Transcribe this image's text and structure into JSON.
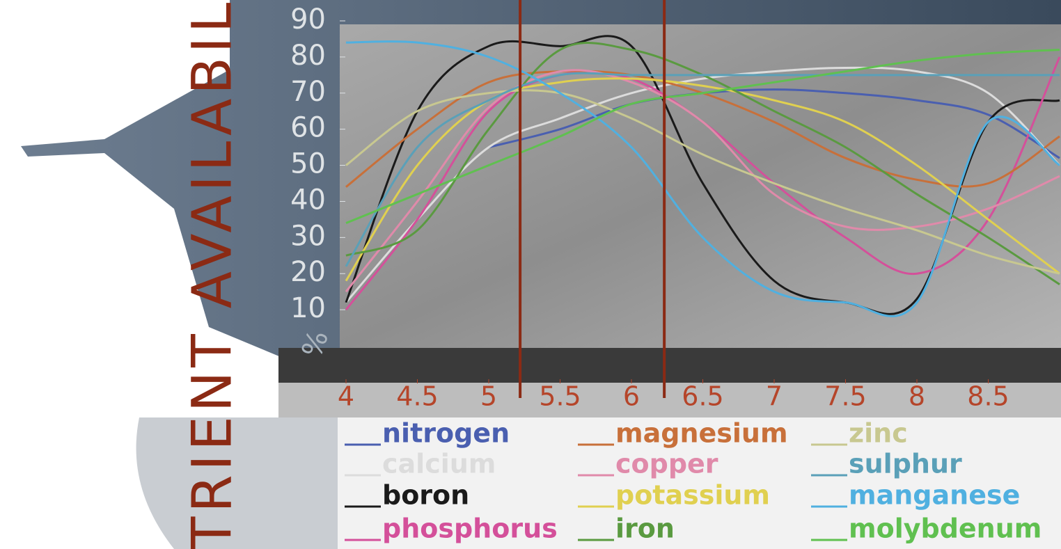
{
  "chart_data": {
    "type": "line",
    "axis_title": "TRIENT AVAILABIL",
    "y_unit": "%",
    "x": [
      4,
      4.5,
      5,
      5.5,
      6,
      6.5,
      7,
      7.5,
      8,
      8.5,
      9
    ],
    "xlim": [
      4,
      9
    ],
    "xticks": [
      4,
      4.5,
      5,
      5.5,
      6,
      6.5,
      7,
      7.5,
      8,
      8.5
    ],
    "ylim": [
      0,
      90
    ],
    "yticks": [
      10,
      20,
      30,
      40,
      50,
      60,
      70,
      80,
      90
    ],
    "vlines": [
      5.22,
      6.23
    ],
    "vline_color": "#8b2a14",
    "series": [
      {
        "name": "nitrogen",
        "color": "#4a5fb0",
        "values": [
          null,
          null,
          55,
          60,
          67,
          70,
          71,
          70,
          68,
          64,
          52
        ]
      },
      {
        "name": "calcium",
        "color": "#dcdcdc",
        "values": [
          12,
          35,
          55,
          63,
          70,
          74,
          76,
          77,
          76,
          70,
          50
        ]
      },
      {
        "name": "boron",
        "color": "#1a1a1a",
        "values": [
          12,
          65,
          83,
          83,
          83,
          45,
          18,
          12,
          13,
          62,
          68
        ]
      },
      {
        "name": "phosphorus",
        "color": "#d4509a",
        "values": [
          10,
          35,
          65,
          75,
          74,
          62,
          45,
          30,
          20,
          35,
          80
        ]
      },
      {
        "name": "magnesium",
        "color": "#c8703a",
        "values": [
          44,
          60,
          73,
          76,
          75,
          70,
          62,
          52,
          46,
          45,
          58
        ]
      },
      {
        "name": "copper",
        "color": "#e08aaa",
        "values": [
          15,
          40,
          66,
          76,
          73,
          62,
          42,
          33,
          33,
          38,
          47
        ]
      },
      {
        "name": "potassium",
        "color": "#e0d050",
        "values": [
          18,
          50,
          68,
          73,
          74,
          72,
          68,
          62,
          50,
          35,
          20
        ]
      },
      {
        "name": "iron",
        "color": "#5a9a40",
        "values": [
          25,
          32,
          60,
          82,
          82,
          75,
          65,
          55,
          42,
          30,
          17
        ]
      },
      {
        "name": "zinc",
        "color": "#c8c890",
        "values": [
          50,
          65,
          70,
          70,
          63,
          53,
          45,
          38,
          32,
          25,
          20
        ]
      },
      {
        "name": "sulphur",
        "color": "#5aa0b8",
        "values": [
          22,
          55,
          68,
          75,
          75,
          75,
          75,
          75,
          75,
          75,
          75
        ]
      },
      {
        "name": "manganese",
        "color": "#50b0e0",
        "values": [
          84,
          84,
          80,
          70,
          55,
          30,
          15,
          12,
          12,
          62,
          50
        ]
      },
      {
        "name": "molybdenum",
        "color": "#60c050",
        "values": [
          34,
          42,
          50,
          58,
          67,
          70,
          73,
          76,
          79,
          81,
          82
        ]
      }
    ]
  }
}
